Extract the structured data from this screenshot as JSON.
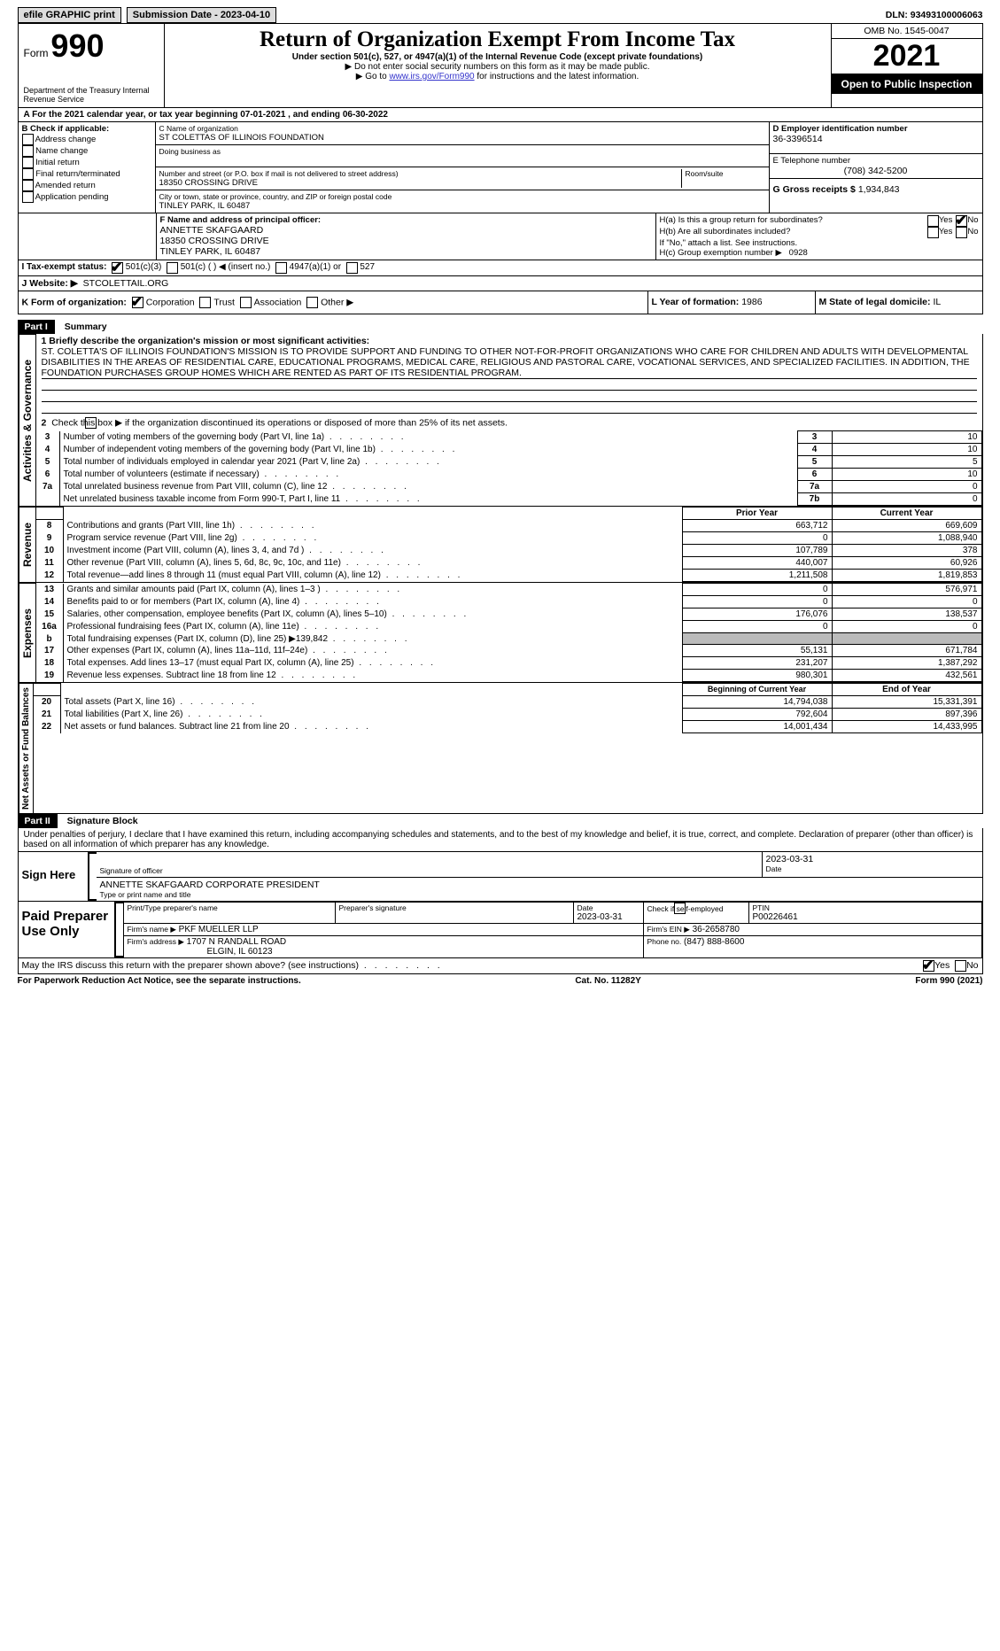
{
  "top": {
    "efile_label": "efile GRAPHIC print",
    "sub_date_label": "Submission Date - 2023-04-10",
    "dln_label": "DLN: 93493100006063"
  },
  "header": {
    "form_word": "Form",
    "form_num": "990",
    "dept": "Department of the Treasury Internal Revenue Service",
    "title": "Return of Organization Exempt From Income Tax",
    "sub": "Under section 501(c), 527, or 4947(a)(1) of the Internal Revenue Code (except private foundations)",
    "instr1": "▶ Do not enter social security numbers on this form as it may be made public.",
    "instr2a": "▶ Go to ",
    "instr2_link": "www.irs.gov/Form990",
    "instr2b": " for instructions and the latest information.",
    "omb": "OMB No. 1545-0047",
    "year": "2021",
    "pub": "Open to Public Inspection"
  },
  "a": {
    "line": "A For the 2021 calendar year, or tax year beginning 07-01-2021    , and ending 06-30-2022"
  },
  "b": {
    "header": "B Check if applicable:",
    "items": [
      "Address change",
      "Name change",
      "Initial return",
      "Final return/terminated",
      "Amended return",
      "Application pending"
    ]
  },
  "c": {
    "name_label": "C Name of organization",
    "name": "ST COLETTAS OF ILLINOIS FOUNDATION",
    "dba_label": "Doing business as",
    "street_label": "Number and street (or P.O. box if mail is not delivered to street address)",
    "room_label": "Room/suite",
    "street": "18350 CROSSING DRIVE",
    "city_label": "City or town, state or province, country, and ZIP or foreign postal code",
    "city": "TINLEY PARK, IL  60487"
  },
  "d": {
    "label": "D Employer identification number",
    "val": "36-3396514"
  },
  "e": {
    "label": "E Telephone number",
    "val": "(708) 342-5200"
  },
  "g": {
    "label": "G Gross receipts $",
    "val": "1,934,843"
  },
  "f": {
    "label": "F  Name and address of principal officer:",
    "name": "ANNETTE SKAFGAARD",
    "street": "18350 CROSSING DRIVE",
    "city": "TINLEY PARK, IL  60487"
  },
  "h": {
    "a": "H(a)  Is this a group return for subordinates?",
    "b": "H(b)  Are all subordinates included?",
    "b_note": "If \"No,\" attach a list. See instructions.",
    "c": "H(c)  Group exemption number ▶",
    "c_val": "0928",
    "yes": "Yes",
    "no": "No"
  },
  "i": {
    "label": "I    Tax-exempt status:",
    "opt1": "501(c)(3)",
    "opt2": "501(c) (  ) ◀ (insert no.)",
    "opt3": "4947(a)(1) or",
    "opt4": "527"
  },
  "j": {
    "label": "J    Website: ▶",
    "val": "STCOLETTAIL.ORG"
  },
  "k": {
    "label": "K Form of organization:",
    "opts": [
      "Corporation",
      "Trust",
      "Association",
      "Other ▶"
    ]
  },
  "l": {
    "label": "L Year of formation:",
    "val": "1986"
  },
  "m": {
    "label": "M State of legal domicile:",
    "val": "IL"
  },
  "part1": {
    "header": "Part I",
    "title": "Summary",
    "vert1": "Activities & Governance",
    "vert2": "Revenue",
    "vert3": "Expenses",
    "vert4": "Net Assets or Fund Balances",
    "q1": "1  Briefly describe the organization's mission or most significant activities:",
    "mission": "ST. COLETTA'S OF ILLINOIS FOUNDATION'S MISSION IS TO PROVIDE SUPPORT AND FUNDING TO OTHER NOT-FOR-PROFIT ORGANIZATIONS WHO CARE FOR CHILDREN AND ADULTS WITH DEVELOPMENTAL DISABILITIES IN THE AREAS OF RESIDENTIAL CARE, EDUCATIONAL PROGRAMS, MEDICAL CARE, RELIGIOUS AND PASTORAL CARE, VOCATIONAL SERVICES, AND SPECIALIZED FACILITIES. IN ADDITION, THE FOUNDATION PURCHASES GROUP HOMES WHICH ARE RENTED AS PART OF ITS RESIDENTIAL PROGRAM.",
    "q2": "Check this box ▶       if the organization discontinued its operations or disposed of more than 25% of its net assets.",
    "lines_gov": [
      {
        "n": "3",
        "t": "Number of voting members of the governing body (Part VI, line 1a)",
        "c": "3",
        "v": "10"
      },
      {
        "n": "4",
        "t": "Number of independent voting members of the governing body (Part VI, line 1b)",
        "c": "4",
        "v": "10"
      },
      {
        "n": "5",
        "t": "Total number of individuals employed in calendar year 2021 (Part V, line 2a)",
        "c": "5",
        "v": "5"
      },
      {
        "n": "6",
        "t": "Total number of volunteers (estimate if necessary)",
        "c": "6",
        "v": "10"
      },
      {
        "n": "7a",
        "t": "Total unrelated business revenue from Part VIII, column (C), line 12",
        "c": "7a",
        "v": "0"
      },
      {
        "n": "",
        "t": "Net unrelated business taxable income from Form 990-T, Part I, line 11",
        "c": "7b",
        "v": "0"
      }
    ],
    "col_headers": {
      "prior": "Prior Year",
      "current": "Current Year",
      "begin": "Beginning of Current Year",
      "end": "End of Year"
    },
    "lines_rev": [
      {
        "n": "8",
        "t": "Contributions and grants (Part VIII, line 1h)",
        "p": "663,712",
        "c": "669,609"
      },
      {
        "n": "9",
        "t": "Program service revenue (Part VIII, line 2g)",
        "p": "0",
        "c": "1,088,940"
      },
      {
        "n": "10",
        "t": "Investment income (Part VIII, column (A), lines 3, 4, and 7d )",
        "p": "107,789",
        "c": "378"
      },
      {
        "n": "11",
        "t": "Other revenue (Part VIII, column (A), lines 5, 6d, 8c, 9c, 10c, and 11e)",
        "p": "440,007",
        "c": "60,926"
      },
      {
        "n": "12",
        "t": "Total revenue—add lines 8 through 11 (must equal Part VIII, column (A), line 12)",
        "p": "1,211,508",
        "c": "1,819,853"
      }
    ],
    "lines_exp": [
      {
        "n": "13",
        "t": "Grants and similar amounts paid (Part IX, column (A), lines 1–3 )",
        "p": "0",
        "c": "576,971"
      },
      {
        "n": "14",
        "t": "Benefits paid to or for members (Part IX, column (A), line 4)",
        "p": "0",
        "c": "0"
      },
      {
        "n": "15",
        "t": "Salaries, other compensation, employee benefits (Part IX, column (A), lines 5–10)",
        "p": "176,076",
        "c": "138,537"
      },
      {
        "n": "16a",
        "t": "Professional fundraising fees (Part IX, column (A), line 11e)",
        "p": "0",
        "c": "0"
      },
      {
        "n": "b",
        "t": "Total fundraising expenses (Part IX, column (D), line 25) ▶139,842",
        "p": "",
        "c": "",
        "shaded": true
      },
      {
        "n": "17",
        "t": "Other expenses (Part IX, column (A), lines 11a–11d, 11f–24e)",
        "p": "55,131",
        "c": "671,784"
      },
      {
        "n": "18",
        "t": "Total expenses. Add lines 13–17 (must equal Part IX, column (A), line 25)",
        "p": "231,207",
        "c": "1,387,292"
      },
      {
        "n": "19",
        "t": "Revenue less expenses. Subtract line 18 from line 12",
        "p": "980,301",
        "c": "432,561"
      }
    ],
    "lines_net": [
      {
        "n": "20",
        "t": "Total assets (Part X, line 16)",
        "p": "14,794,038",
        "c": "15,331,391"
      },
      {
        "n": "21",
        "t": "Total liabilities (Part X, line 26)",
        "p": "792,604",
        "c": "897,396"
      },
      {
        "n": "22",
        "t": "Net assets or fund balances. Subtract line 21 from line 20",
        "p": "14,001,434",
        "c": "14,433,995"
      }
    ]
  },
  "part2": {
    "header": "Part II",
    "title": "Signature Block",
    "perjury": "Under penalties of perjury, I declare that I have examined this return, including accompanying schedules and statements, and to the best of my knowledge and belief, it is true, correct, and complete. Declaration of preparer (other than officer) is based on all information of which preparer has any knowledge.",
    "sign_here": "Sign Here",
    "sig_officer": "Signature of officer",
    "sig_date": "2023-03-31",
    "date_label": "Date",
    "officer_name": "ANNETTE SKAFGAARD  CORPORATE PRESIDENT",
    "type_name": "Type or print name and title",
    "paid": "Paid Preparer Use Only",
    "prep_name_label": "Print/Type preparer's name",
    "prep_sig_label": "Preparer's signature",
    "prep_date_label": "Date",
    "prep_date": "2023-03-31",
    "self_emp": "Check        if self-employed",
    "ptin_label": "PTIN",
    "ptin": "P00226461",
    "firm_name_label": "Firm's name    ▶",
    "firm_name": "PKF MUELLER LLP",
    "firm_ein_label": "Firm's EIN ▶",
    "firm_ein": "36-2658780",
    "firm_addr_label": "Firm's address ▶",
    "firm_addr1": "1707 N RANDALL ROAD",
    "firm_addr2": "ELGIN, IL  60123",
    "phone_label": "Phone no.",
    "phone": "(847) 888-8600",
    "discuss": "May the IRS discuss this return with the preparer shown above? (see instructions)",
    "yes": "Yes",
    "no": "No"
  },
  "footer": {
    "left": "For Paperwork Reduction Act Notice, see the separate instructions.",
    "mid": "Cat. No. 11282Y",
    "right": "Form 990 (2021)"
  }
}
